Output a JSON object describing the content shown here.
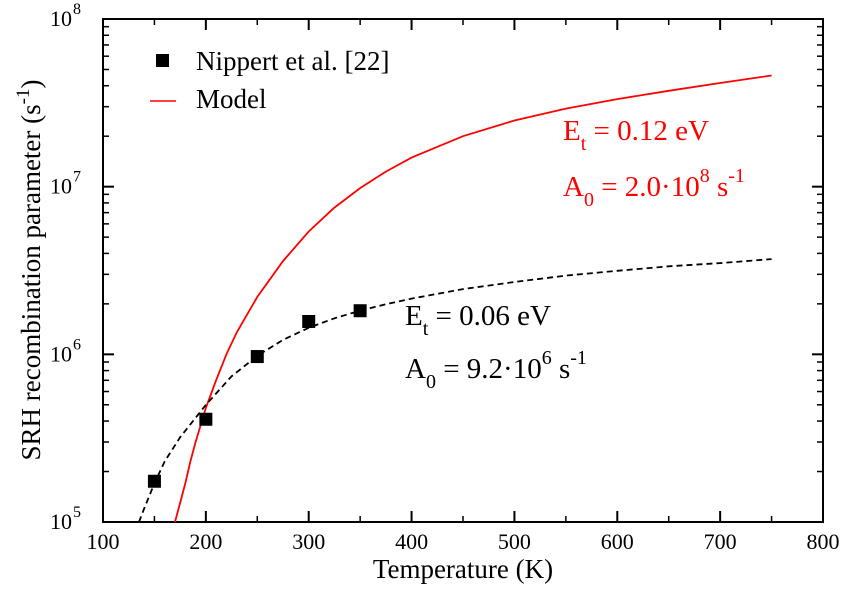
{
  "chart_data": {
    "type": "scatter",
    "xlabel": "Temperature (K)",
    "ylabel": "SRH recombination parameter (s",
    "ylabel_unit_exp": "-1",
    "ylabel_close": ")",
    "xlim": [
      100,
      800
    ],
    "ylim": [
      100000,
      100000000
    ],
    "yscale": "log",
    "grid": false,
    "legend_position": "top-left",
    "x_ticks": [
      "100",
      "200",
      "300",
      "400",
      "500",
      "600",
      "700",
      "800"
    ],
    "y_ticks": [
      {
        "base": "10",
        "exp": "5",
        "value": 100000
      },
      {
        "base": "10",
        "exp": "6",
        "value": 1000000
      },
      {
        "base": "10",
        "exp": "7",
        "value": 10000000
      },
      {
        "base": "10",
        "exp": "8",
        "value": 100000000
      }
    ],
    "series": [
      {
        "name": "Nippert et al. [22]",
        "kind": "markers",
        "color": "#000000",
        "marker": "square",
        "x": [
          150,
          200,
          250,
          300,
          350
        ],
        "y": [
          175000,
          410000,
          970000,
          1570000,
          1820000
        ]
      },
      {
        "name": "Model",
        "kind": "line",
        "color": "#ff0000",
        "dash": "solid",
        "x": [
          170,
          175,
          180,
          185,
          190,
          200,
          210,
          220,
          230,
          250,
          275,
          300,
          325,
          350,
          375,
          400,
          450,
          500,
          550,
          600,
          650,
          700,
          750
        ],
        "y": [
          100000,
          130000,
          170000,
          230000,
          300000,
          480000,
          700000,
          1000000,
          1350000,
          2200000,
          3600000,
          5400000,
          7500000,
          9800000,
          12300000,
          14900000,
          20000000,
          24800000,
          29200000,
          33300000,
          37300000,
          41500000,
          46000000
        ]
      },
      {
        "name": "",
        "kind": "line",
        "color": "#000000",
        "dash": "dashed",
        "x": [
          135,
          140,
          150,
          160,
          175,
          200,
          225,
          250,
          275,
          300,
          325,
          350,
          375,
          400,
          450,
          500,
          550,
          600,
          650,
          700,
          750
        ],
        "y": [
          100000,
          120000,
          170000,
          230000,
          320000,
          500000,
          740000,
          980000,
          1220000,
          1440000,
          1640000,
          1820000,
          1990000,
          2150000,
          2450000,
          2700000,
          2950000,
          3150000,
          3350000,
          3500000,
          3700000
        ]
      }
    ],
    "annotations": [
      {
        "symbol": "E",
        "sub": "t",
        "text": " = 0.12 eV",
        "color": "#ff0000"
      },
      {
        "symbol": "A",
        "sub": "0",
        "text": " = 2.0·10",
        "sup": "8",
        "unit": " s",
        "unit_sup": "-1",
        "color": "#ff0000"
      },
      {
        "symbol": "E",
        "sub": "t",
        "text": " = 0.06 eV",
        "color": "#000000"
      },
      {
        "symbol": "A",
        "sub": "0",
        "text": " = 9.2·10",
        "sup": "6",
        "unit": " s",
        "unit_sup": "-1",
        "color": "#000000"
      }
    ]
  }
}
